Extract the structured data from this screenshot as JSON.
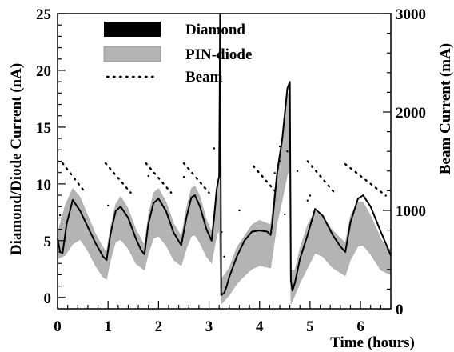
{
  "chart_data": {
    "type": "line",
    "xlabel": "Time (hours)",
    "ylabel_left": "Diamond/Diode Current (nA)",
    "ylabel_right": "Beam Current (mA)",
    "xlim": [
      0,
      6.6
    ],
    "ylim_left": [
      -1,
      25
    ],
    "ylim_right": [
      0,
      3000
    ],
    "x_ticks": [
      0,
      1,
      2,
      3,
      4,
      5,
      6
    ],
    "y_ticks_left": [
      0,
      5,
      10,
      15,
      20,
      25
    ],
    "y_ticks_right": [
      0,
      1000,
      2000,
      3000
    ],
    "legend": [
      "Diamond",
      "PIN-diode",
      "Beam"
    ],
    "legend_position": "top-left",
    "colors": {
      "diamond": "#000000",
      "pin_diode": "#b4b4b4",
      "beam": "#000000"
    },
    "series": [
      {
        "name": "Diamond",
        "axis": "left",
        "style": "solid",
        "points": [
          [
            0.0,
            5.2
          ],
          [
            0.05,
            4.0
          ],
          [
            0.1,
            3.9
          ],
          [
            0.18,
            6.5
          ],
          [
            0.3,
            8.6
          ],
          [
            0.45,
            7.6
          ],
          [
            0.6,
            6.2
          ],
          [
            0.75,
            4.8
          ],
          [
            0.9,
            3.6
          ],
          [
            0.97,
            3.3
          ],
          [
            1.05,
            5.6
          ],
          [
            1.15,
            7.6
          ],
          [
            1.25,
            8.0
          ],
          [
            1.4,
            7.0
          ],
          [
            1.55,
            5.2
          ],
          [
            1.65,
            4.2
          ],
          [
            1.72,
            3.8
          ],
          [
            1.8,
            6.5
          ],
          [
            1.9,
            8.3
          ],
          [
            2.0,
            8.7
          ],
          [
            2.15,
            7.6
          ],
          [
            2.3,
            5.7
          ],
          [
            2.45,
            4.6
          ],
          [
            2.55,
            7.0
          ],
          [
            2.65,
            8.8
          ],
          [
            2.72,
            9.0
          ],
          [
            2.82,
            8.0
          ],
          [
            2.95,
            6.0
          ],
          [
            3.05,
            5.0
          ],
          [
            3.1,
            7.0
          ],
          [
            3.15,
            9.5
          ],
          [
            3.2,
            10.7
          ],
          [
            3.22,
            25.0
          ],
          [
            3.24,
            0.2
          ],
          [
            3.3,
            0.4
          ],
          [
            3.35,
            1.0
          ],
          [
            3.4,
            1.8
          ],
          [
            3.55,
            3.6
          ],
          [
            3.7,
            5.0
          ],
          [
            3.85,
            5.8
          ],
          [
            4.0,
            5.9
          ],
          [
            4.15,
            5.8
          ],
          [
            4.22,
            5.5
          ],
          [
            4.25,
            6.5
          ],
          [
            4.35,
            11.0
          ],
          [
            4.45,
            14.0
          ],
          [
            4.55,
            18.4
          ],
          [
            4.6,
            19.0
          ],
          [
            4.62,
            1.5
          ],
          [
            4.65,
            0.6
          ],
          [
            4.7,
            1.3
          ],
          [
            4.8,
            3.4
          ],
          [
            4.95,
            5.5
          ],
          [
            5.1,
            7.8
          ],
          [
            5.25,
            7.2
          ],
          [
            5.45,
            5.5
          ],
          [
            5.6,
            4.5
          ],
          [
            5.7,
            4.0
          ],
          [
            5.8,
            6.6
          ],
          [
            5.95,
            8.7
          ],
          [
            6.05,
            9.0
          ],
          [
            6.2,
            8.0
          ],
          [
            6.4,
            5.8
          ],
          [
            6.6,
            3.7
          ]
        ]
      },
      {
        "name": "PIN-diode",
        "axis": "left",
        "style": "band",
        "upper": [
          [
            0.0,
            5.6
          ],
          [
            0.15,
            8.1
          ],
          [
            0.3,
            9.6
          ],
          [
            0.45,
            8.8
          ],
          [
            0.6,
            7.2
          ],
          [
            0.75,
            5.6
          ],
          [
            0.9,
            4.4
          ],
          [
            0.97,
            4.0
          ],
          [
            1.05,
            6.2
          ],
          [
            1.15,
            8.2
          ],
          [
            1.25,
            8.9
          ],
          [
            1.4,
            7.8
          ],
          [
            1.55,
            6.0
          ],
          [
            1.72,
            4.6
          ],
          [
            1.8,
            7.2
          ],
          [
            1.9,
            9.2
          ],
          [
            2.0,
            9.6
          ],
          [
            2.15,
            8.4
          ],
          [
            2.3,
            6.5
          ],
          [
            2.45,
            5.4
          ],
          [
            2.55,
            7.8
          ],
          [
            2.65,
            9.6
          ],
          [
            2.72,
            9.8
          ],
          [
            2.82,
            8.9
          ],
          [
            2.95,
            6.8
          ],
          [
            3.05,
            5.8
          ],
          [
            3.15,
            9.6
          ],
          [
            3.2,
            10.2
          ],
          [
            3.24,
            1.6
          ],
          [
            3.4,
            2.6
          ],
          [
            3.55,
            4.4
          ],
          [
            3.7,
            5.4
          ],
          [
            3.85,
            6.4
          ],
          [
            4.0,
            6.8
          ],
          [
            4.22,
            6.4
          ],
          [
            4.35,
            11.5
          ],
          [
            4.45,
            14.2
          ],
          [
            4.55,
            17.8
          ],
          [
            4.6,
            18.2
          ],
          [
            4.62,
            2.4
          ],
          [
            4.7,
            2.4
          ],
          [
            4.8,
            4.3
          ],
          [
            4.95,
            6.4
          ],
          [
            5.1,
            7.6
          ],
          [
            5.25,
            7.1
          ],
          [
            5.45,
            5.9
          ],
          [
            5.7,
            4.8
          ],
          [
            5.8,
            7.2
          ],
          [
            5.95,
            8.4
          ],
          [
            6.05,
            8.4
          ],
          [
            6.2,
            7.2
          ],
          [
            6.4,
            5.2
          ],
          [
            6.6,
            3.7
          ]
        ],
        "lower": [
          [
            0.0,
            3.4
          ],
          [
            0.15,
            3.7
          ],
          [
            0.3,
            4.7
          ],
          [
            0.45,
            5.1
          ],
          [
            0.6,
            4.1
          ],
          [
            0.75,
            2.8
          ],
          [
            0.9,
            1.8
          ],
          [
            0.97,
            1.6
          ],
          [
            1.05,
            3.3
          ],
          [
            1.15,
            4.9
          ],
          [
            1.25,
            5.1
          ],
          [
            1.4,
            4.3
          ],
          [
            1.55,
            3.0
          ],
          [
            1.72,
            2.4
          ],
          [
            1.8,
            3.9
          ],
          [
            1.9,
            5.2
          ],
          [
            2.0,
            5.4
          ],
          [
            2.15,
            4.6
          ],
          [
            2.3,
            3.3
          ],
          [
            2.45,
            2.8
          ],
          [
            2.55,
            4.3
          ],
          [
            2.65,
            5.4
          ],
          [
            2.72,
            5.5
          ],
          [
            2.82,
            4.8
          ],
          [
            2.95,
            3.6
          ],
          [
            3.05,
            3.0
          ],
          [
            3.15,
            5.4
          ],
          [
            3.2,
            6.0
          ],
          [
            3.24,
            -0.6
          ],
          [
            3.4,
            0.2
          ],
          [
            3.55,
            1.2
          ],
          [
            3.7,
            1.9
          ],
          [
            3.85,
            2.5
          ],
          [
            4.0,
            2.8
          ],
          [
            4.22,
            2.6
          ],
          [
            4.35,
            6.6
          ],
          [
            4.45,
            8.6
          ],
          [
            4.55,
            10.8
          ],
          [
            4.6,
            11.2
          ],
          [
            4.62,
            -0.6
          ],
          [
            4.7,
            0.2
          ],
          [
            4.8,
            1.3
          ],
          [
            4.95,
            2.6
          ],
          [
            5.1,
            3.9
          ],
          [
            5.25,
            3.6
          ],
          [
            5.45,
            2.6
          ],
          [
            5.7,
            1.9
          ],
          [
            5.8,
            3.3
          ],
          [
            5.95,
            4.5
          ],
          [
            6.05,
            4.6
          ],
          [
            6.2,
            3.8
          ],
          [
            6.4,
            2.4
          ],
          [
            6.6,
            2.0
          ]
        ]
      },
      {
        "name": "Beam",
        "axis": "right",
        "style": "dotted",
        "segments": [
          [
            [
              0.1,
              1480
            ],
            [
              0.55,
              1180
            ]
          ],
          [
            [
              0.95,
              1480
            ],
            [
              1.45,
              1180
            ]
          ],
          [
            [
              1.75,
              1480
            ],
            [
              2.25,
              1180
            ]
          ],
          [
            [
              2.5,
              1480
            ],
            [
              3.0,
              1180
            ]
          ],
          [
            [
              3.88,
              1450
            ],
            [
              4.3,
              1200
            ]
          ],
          [
            [
              4.95,
              1500
            ],
            [
              5.5,
              1170
            ]
          ],
          [
            [
              5.7,
              1470
            ],
            [
              6.5,
              1150
            ]
          ]
        ],
        "points": [
          [
            0.05,
            950
          ],
          [
            1.0,
            1050
          ],
          [
            1.8,
            1350
          ],
          [
            2.5,
            1340
          ],
          [
            3.1,
            1630
          ],
          [
            3.25,
            780
          ],
          [
            3.3,
            530
          ],
          [
            3.6,
            1000
          ],
          [
            4.3,
            1380
          ],
          [
            4.4,
            1650
          ],
          [
            4.4,
            1500
          ],
          [
            4.55,
            1600
          ],
          [
            4.5,
            960
          ],
          [
            4.75,
            1400
          ],
          [
            4.95,
            1100
          ],
          [
            5.0,
            1150
          ]
        ]
      }
    ]
  }
}
